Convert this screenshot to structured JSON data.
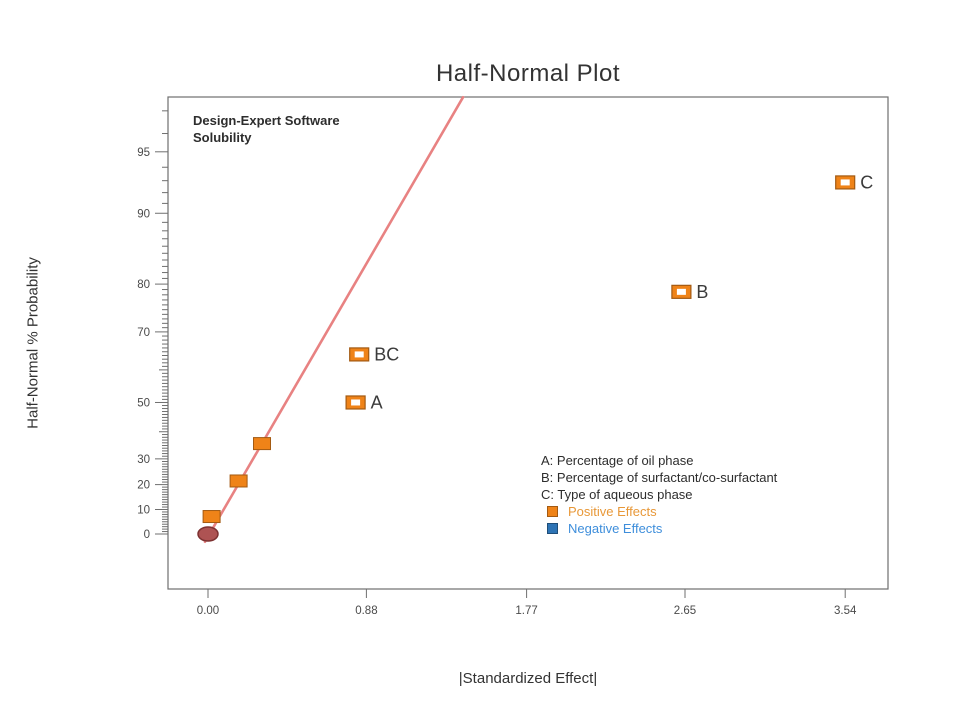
{
  "title": "Half-Normal Plot",
  "annotation": {
    "line1": "Design-Expert Software",
    "line2": "Solubility"
  },
  "legend": {
    "factors": [
      "A: Percentage of oil phase",
      "B: Percentage of surfactant/co-surfactant",
      "C: Type of aqueous phase"
    ],
    "positive_label": "Positive Effects",
    "negative_label": "Negative Effects"
  },
  "chart_data": {
    "type": "scatter",
    "title": "Half-Normal Plot",
    "xlabel": "|Standardized Effect|",
    "ylabel": "Half-Normal % Probability",
    "x_range": [
      0,
      3.54
    ],
    "y_scale": "half-normal-probability",
    "grid": false,
    "x_ticks": [
      {
        "value": 0.0,
        "label": "0.00"
      },
      {
        "value": 0.88,
        "label": "0.88"
      },
      {
        "value": 1.77,
        "label": "1.77"
      },
      {
        "value": 2.65,
        "label": "2.65"
      },
      {
        "value": 3.54,
        "label": "3.54"
      }
    ],
    "y_ticks_labeled": [
      0,
      10,
      20,
      30,
      50,
      70,
      80,
      90,
      95
    ],
    "y_minor_tick_step": 1,
    "y_minor_tick_max": 97,
    "series": [
      {
        "name": "labeled-positive-effects",
        "marker": "open-square",
        "points": [
          {
            "label": "A",
            "x": 0.82,
            "p": 50.0
          },
          {
            "label": "BC",
            "x": 0.84,
            "p": 64.29
          },
          {
            "label": "B",
            "x": 2.63,
            "p": 78.57
          },
          {
            "label": "C",
            "x": 3.54,
            "p": 92.86
          }
        ]
      },
      {
        "name": "small-positive-effects",
        "marker": "filled-square",
        "points": [
          {
            "label": "",
            "x": 0.3,
            "p": 35.71
          },
          {
            "label": "",
            "x": 0.17,
            "p": 21.43
          },
          {
            "label": "",
            "x": 0.02,
            "p": 7.14
          }
        ]
      },
      {
        "name": "origin-marker",
        "marker": "ellipse",
        "points": [
          {
            "label": "",
            "x": 0.0,
            "p": 0.0
          }
        ]
      }
    ],
    "fit_line": {
      "x1": -0.017,
      "z1": -0.04,
      "x2": 1.417,
      "z2": 2.24
    }
  },
  "colors": {
    "positive_fill": "#EF8318",
    "positive_edge": "#A35A12",
    "positive_text": "#E89838",
    "negative_fill": "#2E74B5",
    "negative_edge": "#1F4E79",
    "negative_text": "#3E8EDB",
    "fit_line": "#E88282",
    "origin_fill": "#AE5353",
    "origin_edge": "#7D3232",
    "axis_line": "#6F6F6F",
    "tick_text": "#4A4A4A",
    "point_label_text": "#3B3B3B"
  }
}
